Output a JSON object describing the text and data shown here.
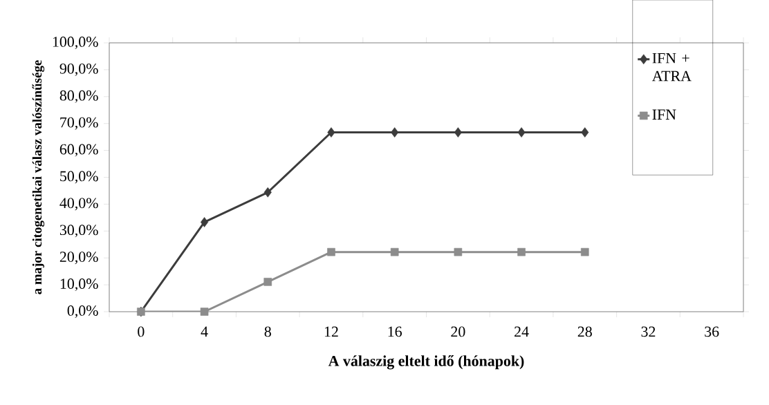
{
  "chart_data": {
    "type": "line",
    "xlabel": "A válaszig eltelt idő (hónapok)",
    "ylabel": "a major citogenetikai válasz valószínűsége",
    "categories": [
      "0",
      "4",
      "8",
      "12",
      "16",
      "20",
      "24",
      "28",
      "32",
      "36"
    ],
    "series": [
      {
        "name": "IFN + ATRA",
        "color": "#3c3c3c",
        "marker": "diamond",
        "values": [
          0,
          33.3,
          44.4,
          66.7,
          66.7,
          66.7,
          66.7,
          66.7,
          null,
          null
        ]
      },
      {
        "name": "IFN",
        "color": "#8c8c8c",
        "marker": "square",
        "values": [
          0,
          0,
          11.1,
          22.2,
          22.2,
          22.2,
          22.2,
          22.2,
          null,
          null
        ]
      }
    ],
    "ylim": [
      0,
      100
    ],
    "yticks": [
      {
        "value": 0,
        "label": "0,0%"
      },
      {
        "value": 10,
        "label": "10,0%"
      },
      {
        "value": 20,
        "label": "20,0%"
      },
      {
        "value": 30,
        "label": "30,0%"
      },
      {
        "value": 40,
        "label": "40,0%"
      },
      {
        "value": 50,
        "label": "50,0%"
      },
      {
        "value": 60,
        "label": "60,0%"
      },
      {
        "value": 70,
        "label": "70,0%"
      },
      {
        "value": 80,
        "label": "80,0%"
      },
      {
        "value": 90,
        "label": "90,0%"
      },
      {
        "value": 100,
        "label": "100,0%"
      }
    ],
    "grid": false,
    "legend": "top right",
    "line_style": "solid"
  }
}
